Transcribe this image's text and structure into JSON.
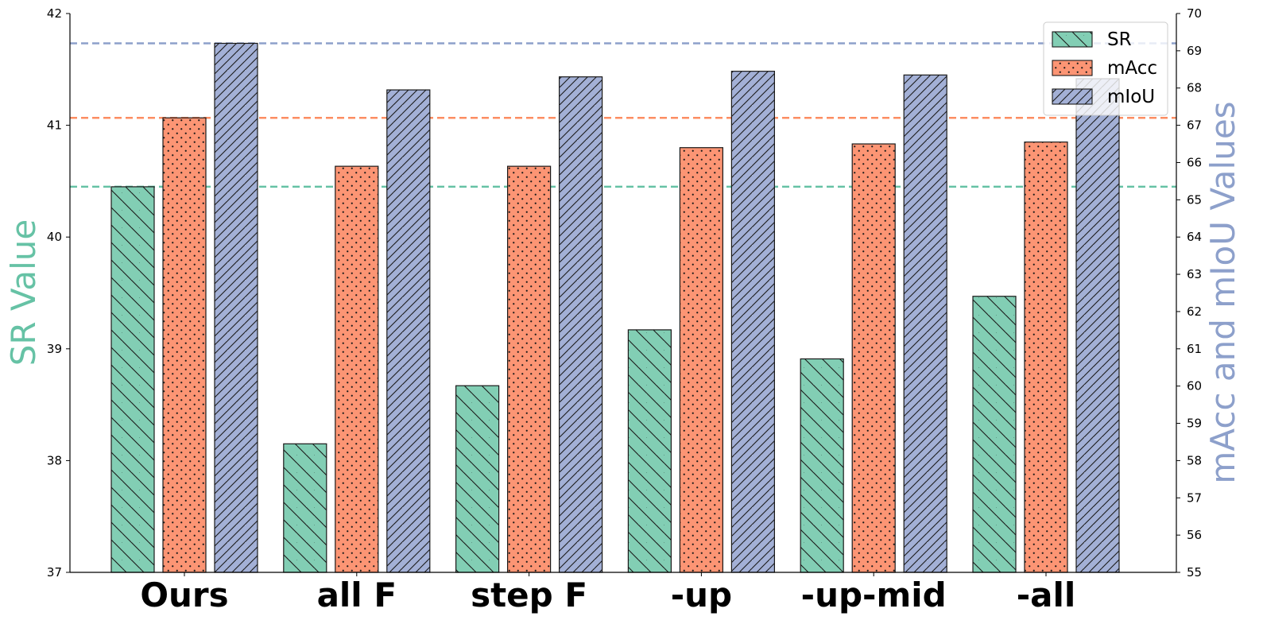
{
  "chart_data": {
    "type": "bar",
    "categories": [
      "Ours",
      "all F",
      "step F",
      "-up",
      "-up-mid",
      "-all"
    ],
    "series": [
      {
        "name": "SR",
        "axis": "left",
        "color": "#82ceb4",
        "hatch": "backslash",
        "values": [
          40.45,
          38.15,
          38.67,
          39.17,
          38.91,
          39.47
        ]
      },
      {
        "name": "mAcc",
        "axis": "right",
        "color": "#fc9574",
        "hatch": "dots",
        "values": [
          67.2,
          65.9,
          65.9,
          66.4,
          66.5,
          66.55
        ]
      },
      {
        "name": "mIoU",
        "axis": "right",
        "color": "#a3b0d6",
        "hatch": "slash",
        "values": [
          69.2,
          67.95,
          68.3,
          68.45,
          68.35,
          68.25
        ]
      }
    ],
    "reference_lines": [
      {
        "series": "SR",
        "axis": "left",
        "value": 40.45,
        "color": "#66c2a5"
      },
      {
        "series": "mAcc",
        "axis": "right",
        "value": 67.2,
        "color": "#fc8d62"
      },
      {
        "series": "mIoU",
        "axis": "right",
        "value": 69.2,
        "color": "#8da0cb"
      }
    ],
    "y_left": {
      "label": "SR Value",
      "color": "#66c2a5",
      "ylim": [
        37,
        42
      ],
      "ticks": [
        "37",
        "38",
        "39",
        "40",
        "41",
        "42"
      ]
    },
    "y_right": {
      "label": "mAcc and mIoU Values",
      "color": "#8da0cb",
      "ylim": [
        55,
        70
      ],
      "ticks": [
        "55",
        "56",
        "57",
        "58",
        "59",
        "60",
        "61",
        "62",
        "63",
        "64",
        "65",
        "66",
        "67",
        "68",
        "69",
        "70"
      ]
    },
    "legend": {
      "position": "top-right",
      "entries": [
        "SR",
        "mAcc",
        "mIoU"
      ]
    },
    "grid": false
  }
}
